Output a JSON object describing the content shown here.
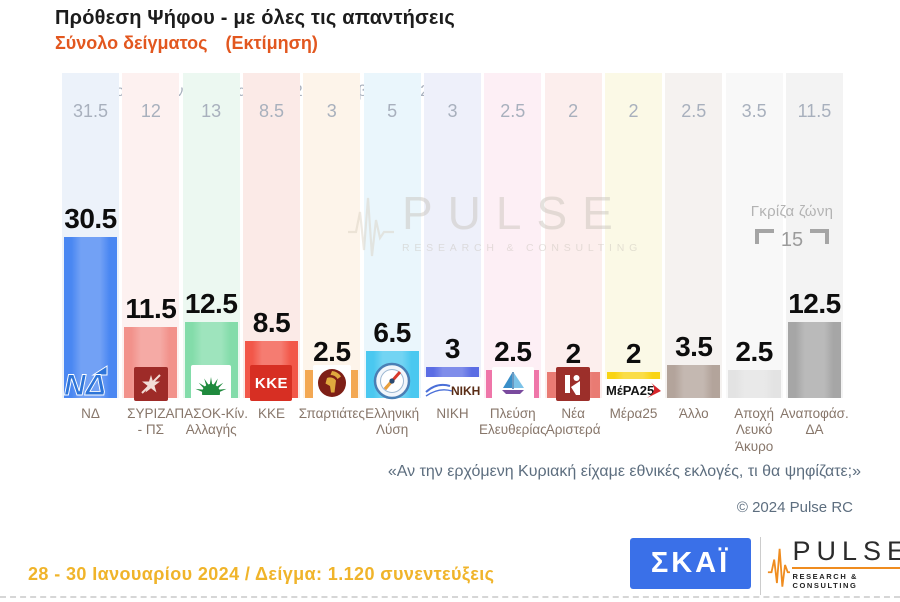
{
  "header": {
    "title": "Πρόθεση Ψήφου - με όλες τις απαντήσεις",
    "subtitle": "Σύνολο δείγματος",
    "subtitle_note": "(Εκτίμηση)"
  },
  "previous": {
    "label": "Προηγούμενη έρευνα ( 18 - 20 Δεκεμβρίου 2023 )"
  },
  "parties": [
    {
      "label_lines": [
        "ΝΔ"
      ],
      "value": "30.5",
      "prev": "31.5",
      "bar_color": "#4a87f2",
      "tint": "#ecf2fa",
      "logo": "nd",
      "logo_text": "ΝΔ"
    },
    {
      "label_lines": [
        "ΣΥΡΙΖΑ",
        "- ΠΣ"
      ],
      "value": "11.5",
      "prev": "12",
      "bar_color": "#f2928b",
      "tint": "#fdf1f0",
      "logo": "syriza",
      "logo_text": ""
    },
    {
      "label_lines": [
        "ΠΑΣΟΚ-Κίν.",
        "Αλλαγής"
      ],
      "value": "12.5",
      "prev": "13",
      "bar_color": "#83dcaa",
      "tint": "#ecf8f1",
      "logo": "pasok",
      "logo_text": ""
    },
    {
      "label_lines": [
        "ΚΚΕ"
      ],
      "value": "8.5",
      "prev": "8.5",
      "bar_color": "#f25749",
      "tint": "#fbeae7",
      "logo": "kke",
      "logo_text": "ΚΚΕ"
    },
    {
      "label_lines": [
        "Σπαρτιάτες"
      ],
      "value": "2.5",
      "prev": "3",
      "bar_color": "#f3a853",
      "tint": "#fdf4ea",
      "logo": "spartiates",
      "logo_text": ""
    },
    {
      "label_lines": [
        "Ελληνική",
        "Λύση"
      ],
      "value": "6.5",
      "prev": "5",
      "bar_color": "#4ac8f0",
      "tint": "#eaf6fc",
      "logo": "ellysi",
      "logo_text": ""
    },
    {
      "label_lines": [
        "ΝΙΚΗ"
      ],
      "value": "3",
      "prev": "3",
      "bar_color": "#5b6de4",
      "tint": "#eef0fa",
      "logo": "niki",
      "logo_text": "ΝΙΚΗ"
    },
    {
      "label_lines": [
        "Πλεύση",
        "Ελευθερίας"
      ],
      "value": "2.5",
      "prev": "2.5",
      "bar_color": "#ef76a9",
      "tint": "#fdeff5",
      "logo": "plefsi",
      "logo_text": ""
    },
    {
      "label_lines": [
        "Νέα",
        "Αριστερά"
      ],
      "value": "2",
      "prev": "2",
      "bar_color": "#e97b73",
      "tint": "#fceeed",
      "logo": "nea",
      "logo_text": ""
    },
    {
      "label_lines": [
        "Μέρα25"
      ],
      "value": "2",
      "prev": "2",
      "bar_color": "#f9d414",
      "tint": "#fbf9e6",
      "logo": "mera",
      "logo_text": "ΜέΡΑ25"
    },
    {
      "label_lines": [
        "Άλλο"
      ],
      "value": "3.5",
      "prev": "2.5",
      "bar_color": "#b3a49b",
      "tint": "#f5f2f0",
      "logo": "none",
      "logo_text": ""
    },
    {
      "label_lines": [
        "Αποχή",
        "Λευκό",
        "Άκυρο"
      ],
      "value": "2.5",
      "prev": "3.5",
      "bar_color": "#e3e3e3",
      "tint": "#f8f8f8",
      "logo": "none",
      "logo_text": ""
    },
    {
      "label_lines": [
        "Αναποφάσ.",
        "ΔΑ"
      ],
      "value": "12.5",
      "prev": "11.5",
      "bar_color": "#a6a6a6",
      "tint": "#f3f3f3",
      "logo": "none",
      "logo_text": ""
    }
  ],
  "gray_zone": {
    "label": "Γκρίζα ζώνη",
    "value": "15"
  },
  "watermark": {
    "title": "PULSE",
    "subtitle": "RESEARCH & CONSULTING"
  },
  "question": "«Αν την ερχόμενη Κυριακή είχαμε εθνικές εκλογές, τι θα ψηφίζατε;»",
  "copyright": "© 2024 Pulse RC",
  "footer": {
    "fieldwork": "28 - 30 Ιανουαρίου 2024 / Δείγμα: 1.120 συνεντεύξεις",
    "skai_text": "ΣΚΑΪ",
    "pulse_title": "PULSE",
    "pulse_subtitle": "RESEARCH & CONSULTING"
  },
  "chart_data": {
    "type": "bar",
    "title": "Πρόθεση Ψήφου - με όλες τις απαντήσεις",
    "subtitle": "Σύνολο δείγματος (Εκτίμηση)",
    "categories": [
      "ΝΔ",
      "ΣΥΡΙΖΑ - ΠΣ",
      "ΠΑΣΟΚ-Κίν. Αλλαγής",
      "ΚΚΕ",
      "Σπαρτιάτες",
      "Ελληνική Λύση",
      "ΝΙΚΗ",
      "Πλεύση Ελευθερίας",
      "Νέα Αριστερά",
      "Μέρα25",
      "Άλλο",
      "Αποχή Λευκό Άκυρο",
      "Αναποφάσ. ΔΑ"
    ],
    "series": [
      {
        "name": "Εκτίμηση 28 - 30 Ιανουαρίου 2024",
        "values": [
          30.5,
          11.5,
          12.5,
          8.5,
          2.5,
          6.5,
          3,
          2.5,
          2,
          2,
          3.5,
          2.5,
          12.5
        ]
      },
      {
        "name": "Προηγούμενη έρευνα ( 18 - 20 Δεκεμβρίου 2023 )",
        "values": [
          31.5,
          12,
          13,
          8.5,
          3,
          5,
          3,
          2.5,
          2,
          2,
          2.5,
          3.5,
          11.5
        ]
      }
    ],
    "annotations": [
      {
        "label": "Γκρίζα ζώνη",
        "value": 15,
        "applies_to": [
          "Αποχή Λευκό Άκυρο",
          "Αναποφάσ. ΔΑ"
        ]
      }
    ],
    "ylim": [
      0,
      35
    ],
    "grid": false,
    "legend_position": "none"
  }
}
